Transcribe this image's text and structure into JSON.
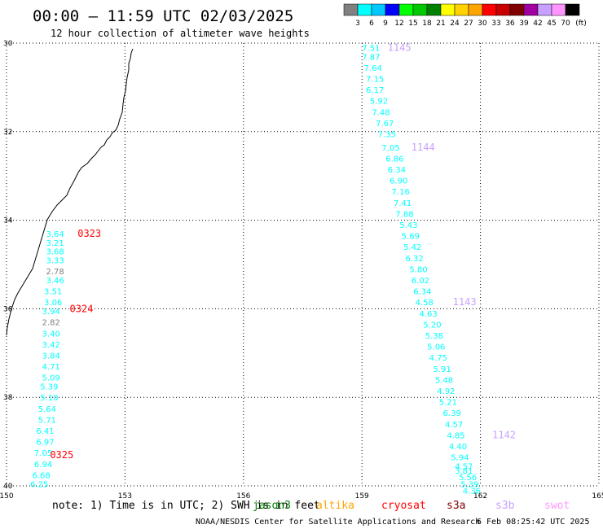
{
  "title": "00:00 – 11:59 UTC 02/03/2025",
  "subtitle": "12 hour collection of altimeter wave heights",
  "legend": {
    "colors": [
      "#808080",
      "#00ffff",
      "#00c8ff",
      "#0000ff",
      "#00ff00",
      "#00c800",
      "#008000",
      "#ffff00",
      "#ffd200",
      "#ffa500",
      "#ff0000",
      "#c80000",
      "#800000",
      "#a000a0",
      "#c8a0ff",
      "#ff96ff",
      "#000000"
    ],
    "labels": [
      "3",
      "6",
      "9",
      "12",
      "15",
      "18",
      "21",
      "24",
      "27",
      "30",
      "33",
      "36",
      "39",
      "42",
      "45",
      "70"
    ],
    "unit": "(ft)"
  },
  "note": "note: 1) Time is in UTC; 2) SWH is in feet",
  "satellites": [
    {
      "name": "jason3",
      "color": "#008000"
    },
    {
      "name": "altika",
      "color": "#ffa500"
    },
    {
      "name": "cryosat",
      "color": "#ff0000"
    },
    {
      "name": "s3a",
      "color": "#800000"
    },
    {
      "name": "s3b",
      "color": "#c8a0ff"
    },
    {
      "name": "swot",
      "color": "#ff96ff"
    }
  ],
  "credit": "NOAA/NESDIS Center for Satellite Applications and Research",
  "timestamp": "6 Feb 08:25:42 UTC 2025",
  "chart_data": {
    "type": "scatter",
    "xlim": [
      150,
      165
    ],
    "ylim": [
      -40,
      -30
    ],
    "x_ticks": [
      150,
      153,
      156,
      159,
      162,
      165
    ],
    "y_ticks": [
      -30,
      -32,
      -34,
      -36,
      -38,
      -40
    ],
    "x_tick_labels": [
      "150",
      "153",
      "156",
      "159",
      "162",
      "165"
    ],
    "y_tick_labels": [
      "30",
      "32",
      "34",
      "36",
      "38",
      "40"
    ],
    "grid": true,
    "pass_labels": [
      {
        "text": "0323",
        "lon": 151.8,
        "lat": -34.3,
        "color": "#ff0000"
      },
      {
        "text": "0324",
        "lon": 151.6,
        "lat": -36.0,
        "color": "#ff0000"
      },
      {
        "text": "0325",
        "lon": 151.1,
        "lat": -39.3,
        "color": "#ff0000"
      },
      {
        "text": "1145",
        "lon": 159.65,
        "lat": -30.1,
        "color": "#c8a0ff"
      },
      {
        "text": "1144",
        "lon": 160.25,
        "lat": -32.35,
        "color": "#c8a0ff"
      },
      {
        "text": "1143",
        "lon": 161.3,
        "lat": -35.85,
        "color": "#c8a0ff"
      },
      {
        "text": "1142",
        "lon": 162.3,
        "lat": -38.85,
        "color": "#c8a0ff"
      }
    ],
    "series": [
      {
        "satellite": "cryosat",
        "points": [
          {
            "lon": 151.0,
            "lat": -34.3,
            "v": "3.64",
            "c": "#00ffff"
          },
          {
            "lon": 151.0,
            "lat": -34.5,
            "v": "3.21",
            "c": "#00ffff"
          },
          {
            "lon": 151.0,
            "lat": -34.7,
            "v": "3.68",
            "c": "#00ffff"
          },
          {
            "lon": 151.0,
            "lat": -34.9,
            "v": "3.33",
            "c": "#00ffff"
          },
          {
            "lon": 151.0,
            "lat": -35.15,
            "v": "2.78",
            "c": "#808080"
          },
          {
            "lon": 151.0,
            "lat": -35.35,
            "v": "3.46",
            "c": "#00ffff"
          },
          {
            "lon": 150.95,
            "lat": -35.6,
            "v": "3.51",
            "c": "#00ffff"
          },
          {
            "lon": 150.95,
            "lat": -35.85,
            "v": "3.06",
            "c": "#00ffff"
          },
          {
            "lon": 150.9,
            "lat": -36.05,
            "v": "3.94",
            "c": "#00ffff"
          },
          {
            "lon": 150.9,
            "lat": -36.3,
            "v": "2.82",
            "c": "#808080"
          },
          {
            "lon": 150.9,
            "lat": -36.55,
            "v": "3.40",
            "c": "#00ffff"
          },
          {
            "lon": 150.9,
            "lat": -36.8,
            "v": "3.42",
            "c": "#00ffff"
          },
          {
            "lon": 150.9,
            "lat": -37.05,
            "v": "3.84",
            "c": "#00ffff"
          },
          {
            "lon": 150.9,
            "lat": -37.3,
            "v": "4.71",
            "c": "#00ffff"
          },
          {
            "lon": 150.9,
            "lat": -37.55,
            "v": "5.09",
            "c": "#00ffff"
          },
          {
            "lon": 150.85,
            "lat": -37.75,
            "v": "5.39",
            "c": "#00ffff"
          },
          {
            "lon": 150.85,
            "lat": -38.0,
            "v": "5.10",
            "c": "#00ffff"
          },
          {
            "lon": 150.8,
            "lat": -38.25,
            "v": "5.64",
            "c": "#00ffff"
          },
          {
            "lon": 150.8,
            "lat": -38.5,
            "v": "5.71",
            "c": "#00ffff"
          },
          {
            "lon": 150.75,
            "lat": -38.75,
            "v": "6.41",
            "c": "#00ffff"
          },
          {
            "lon": 150.75,
            "lat": -39.0,
            "v": "6.97",
            "c": "#00ffff"
          },
          {
            "lon": 150.7,
            "lat": -39.25,
            "v": "7.05",
            "c": "#00ffff"
          },
          {
            "lon": 150.7,
            "lat": -39.5,
            "v": "6.94",
            "c": "#00ffff"
          },
          {
            "lon": 150.65,
            "lat": -39.75,
            "v": "6.68",
            "c": "#00ffff"
          },
          {
            "lon": 150.6,
            "lat": -39.95,
            "v": "6.25",
            "c": "#00ffff"
          }
        ]
      },
      {
        "satellite": "s3b",
        "points": [
          {
            "lon": 159.0,
            "lat": -30.1,
            "v": "7.51",
            "c": "#00ffff"
          },
          {
            "lon": 159.0,
            "lat": -30.3,
            "v": "7.87",
            "c": "#00ffff"
          },
          {
            "lon": 159.05,
            "lat": -30.55,
            "v": "7.64",
            "c": "#00ffff"
          },
          {
            "lon": 159.1,
            "lat": -30.8,
            "v": "7.15",
            "c": "#00ffff"
          },
          {
            "lon": 159.1,
            "lat": -31.05,
            "v": "6.17",
            "c": "#00ffff"
          },
          {
            "lon": 159.2,
            "lat": -31.3,
            "v": "5.92",
            "c": "#00ffff"
          },
          {
            "lon": 159.25,
            "lat": -31.55,
            "v": "7.48",
            "c": "#00ffff"
          },
          {
            "lon": 159.35,
            "lat": -31.8,
            "v": "7.67",
            "c": "#00ffff"
          },
          {
            "lon": 159.4,
            "lat": -32.05,
            "v": "7.35",
            "c": "#00ffff"
          },
          {
            "lon": 159.5,
            "lat": -32.35,
            "v": "7.05",
            "c": "#00ffff"
          },
          {
            "lon": 159.6,
            "lat": -32.6,
            "v": "6.86",
            "c": "#00ffff"
          },
          {
            "lon": 159.65,
            "lat": -32.85,
            "v": "6.34",
            "c": "#00ffff"
          },
          {
            "lon": 159.7,
            "lat": -33.1,
            "v": "6.90",
            "c": "#00ffff"
          },
          {
            "lon": 159.75,
            "lat": -33.35,
            "v": "7.16",
            "c": "#00ffff"
          },
          {
            "lon": 159.8,
            "lat": -33.6,
            "v": "7.41",
            "c": "#00ffff"
          },
          {
            "lon": 159.85,
            "lat": -33.85,
            "v": "7.88",
            "c": "#00ffff"
          },
          {
            "lon": 159.95,
            "lat": -34.1,
            "v": "5.43",
            "c": "#00ffff"
          },
          {
            "lon": 160.0,
            "lat": -34.35,
            "v": "5.69",
            "c": "#00ffff"
          },
          {
            "lon": 160.05,
            "lat": -34.6,
            "v": "5.42",
            "c": "#00ffff"
          },
          {
            "lon": 160.1,
            "lat": -34.85,
            "v": "6.32",
            "c": "#00ffff"
          },
          {
            "lon": 160.2,
            "lat": -35.1,
            "v": "5.80",
            "c": "#00ffff"
          },
          {
            "lon": 160.25,
            "lat": -35.35,
            "v": "6.02",
            "c": "#00ffff"
          },
          {
            "lon": 160.3,
            "lat": -35.6,
            "v": "6.34",
            "c": "#00ffff"
          },
          {
            "lon": 160.35,
            "lat": -35.85,
            "v": "4.58",
            "c": "#00ffff"
          },
          {
            "lon": 160.45,
            "lat": -36.1,
            "v": "4.63",
            "c": "#00ffff"
          },
          {
            "lon": 160.55,
            "lat": -36.35,
            "v": "5.20",
            "c": "#00ffff"
          },
          {
            "lon": 160.6,
            "lat": -36.6,
            "v": "5.38",
            "c": "#00ffff"
          },
          {
            "lon": 160.65,
            "lat": -36.85,
            "v": "5.06",
            "c": "#00ffff"
          },
          {
            "lon": 160.7,
            "lat": -37.1,
            "v": "4.75",
            "c": "#00ffff"
          },
          {
            "lon": 160.8,
            "lat": -37.35,
            "v": "5.91",
            "c": "#00ffff"
          },
          {
            "lon": 160.85,
            "lat": -37.6,
            "v": "5.48",
            "c": "#00ffff"
          },
          {
            "lon": 160.9,
            "lat": -37.85,
            "v": "4.92",
            "c": "#00ffff"
          },
          {
            "lon": 160.95,
            "lat": -38.1,
            "v": "5.21",
            "c": "#00ffff"
          },
          {
            "lon": 161.05,
            "lat": -38.35,
            "v": "6.39",
            "c": "#00ffff"
          },
          {
            "lon": 161.1,
            "lat": -38.6,
            "v": "4.57",
            "c": "#00ffff"
          },
          {
            "lon": 161.15,
            "lat": -38.85,
            "v": "4.85",
            "c": "#00ffff"
          },
          {
            "lon": 161.2,
            "lat": -39.1,
            "v": "4.40",
            "c": "#00ffff"
          },
          {
            "lon": 161.25,
            "lat": -39.35,
            "v": "5.94",
            "c": "#00ffff"
          },
          {
            "lon": 161.35,
            "lat": -39.55,
            "v": "4.57",
            "c": "#00ffff"
          },
          {
            "lon": 161.35,
            "lat": -39.65,
            "v": "3.81",
            "c": "#00ffff"
          },
          {
            "lon": 161.45,
            "lat": -39.8,
            "v": "5.56",
            "c": "#00ffff"
          },
          {
            "lon": 161.5,
            "lat": -39.95,
            "v": "5.39",
            "c": "#00ffff"
          },
          {
            "lon": 161.55,
            "lat": -40.1,
            "v": "4.36",
            "c": "#00ffff"
          }
        ]
      }
    ]
  }
}
